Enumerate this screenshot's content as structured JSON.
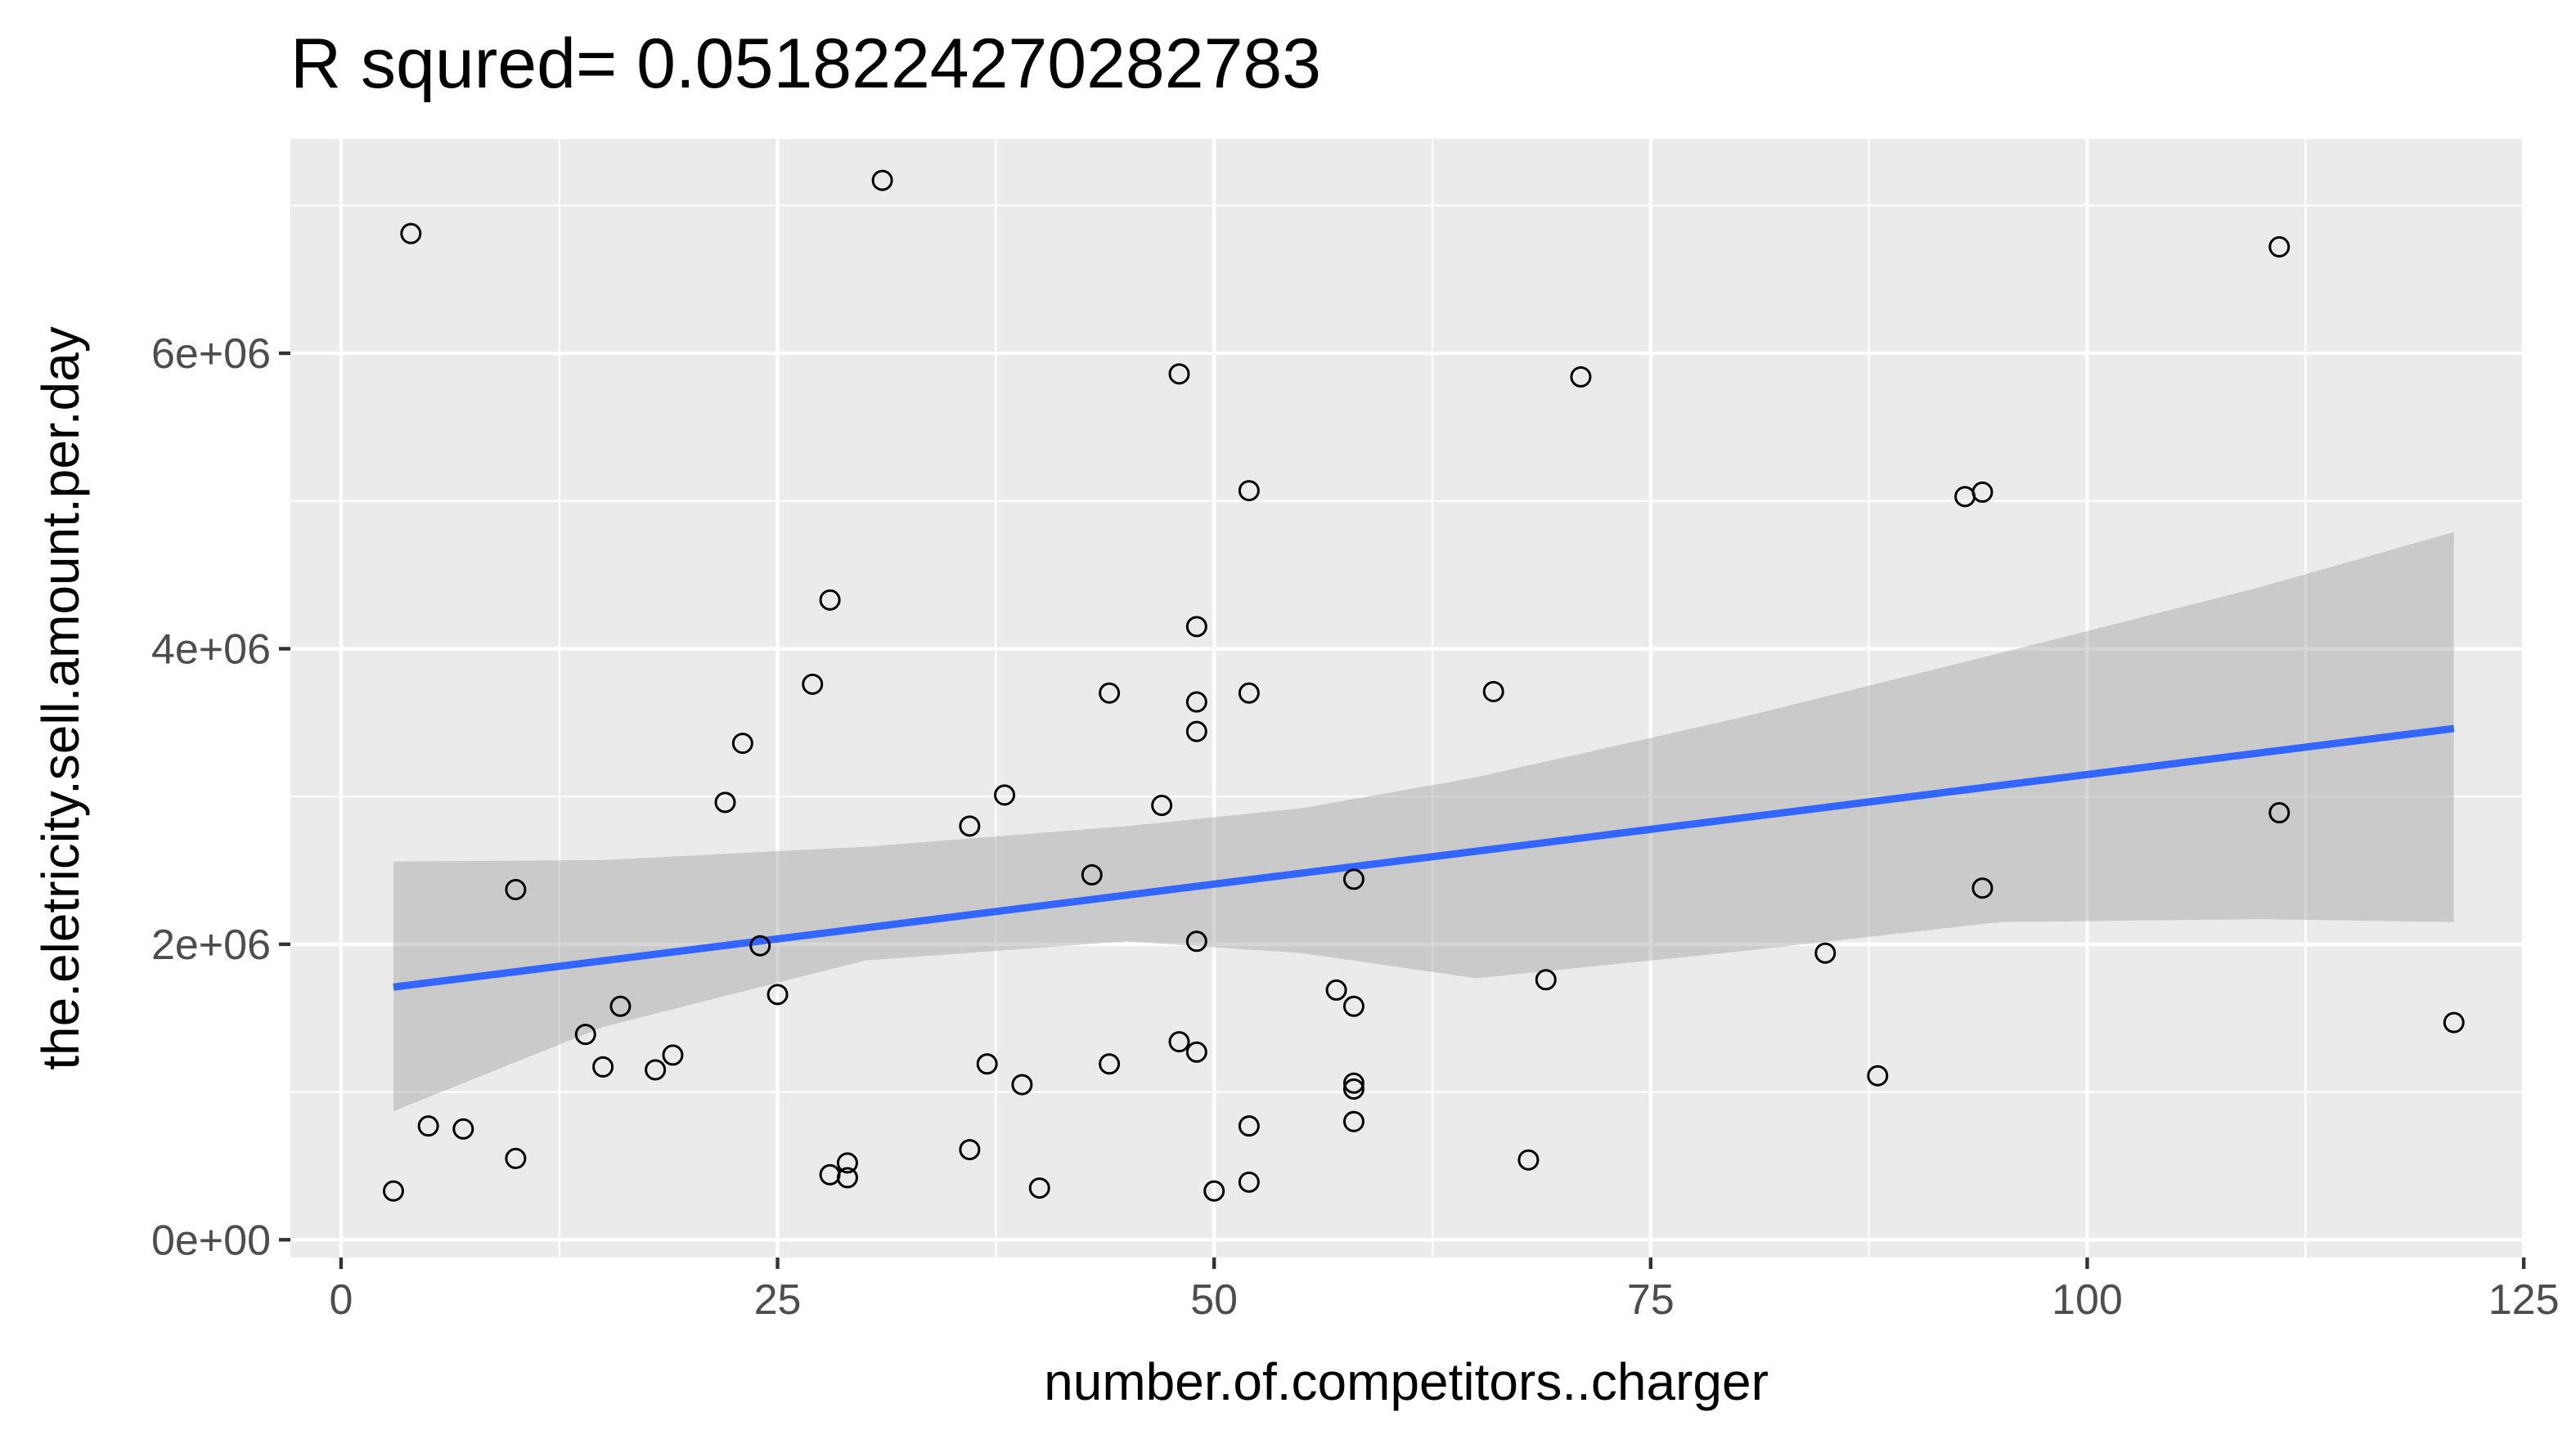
{
  "chart_data": {
    "type": "scatter",
    "title": "R squred= 0.0518224270282783",
    "xlabel": "number.of.competitors..charger",
    "ylabel": "the.eletricity.sell.amount.per.day",
    "xlim": [
      -2.9,
      124.9
    ],
    "ylim": [
      -120000,
      7450000
    ],
    "x_ticks": [
      0,
      25,
      50,
      75,
      100,
      125
    ],
    "x_tick_labels": [
      "0",
      "25",
      "50",
      "75",
      "100",
      "125"
    ],
    "x_minor_ticks": [
      12.5,
      37.5,
      62.5,
      87.5,
      112.5
    ],
    "y_ticks": [
      0,
      2000000,
      4000000,
      6000000
    ],
    "y_tick_labels": [
      "0e+00",
      "2e+06",
      "4e+06",
      "6e+06"
    ],
    "y_minor_ticks": [
      1000000,
      3000000,
      5000000,
      7000000
    ],
    "grid": true,
    "legend": "none",
    "points": {
      "x": [
        3,
        4,
        5,
        7,
        10,
        10,
        14,
        15,
        16,
        18,
        19,
        22,
        23,
        24,
        25,
        27,
        28,
        28,
        29,
        29,
        31,
        36,
        36,
        37,
        38,
        39,
        40,
        43,
        44,
        44,
        47,
        48,
        48,
        49,
        49,
        49,
        49,
        49,
        50,
        52,
        52,
        52,
        52,
        57,
        58,
        58,
        58,
        58,
        58,
        66,
        68,
        69,
        71,
        85,
        88,
        93,
        94,
        94,
        111,
        111,
        121
      ],
      "y": [
        330000,
        6810000,
        770000,
        750000,
        550000,
        2370000,
        1390000,
        1170000,
        1580000,
        1150000,
        1250000,
        2960000,
        3360000,
        1990000,
        1660000,
        3760000,
        4330000,
        440000,
        520000,
        420000,
        7170000,
        2800000,
        610000,
        1190000,
        3010000,
        1050000,
        350000,
        2470000,
        3700000,
        1190000,
        2940000,
        5860000,
        1340000,
        4150000,
        3640000,
        3440000,
        2020000,
        1270000,
        330000,
        5070000,
        3700000,
        770000,
        390000,
        1690000,
        2440000,
        1580000,
        1060000,
        1020000,
        800000,
        3710000,
        540000,
        1760000,
        5840000,
        1940000,
        1110000,
        5030000,
        5060000,
        2380000,
        6720000,
        2890000,
        1470000
      ]
    },
    "fit": {
      "method": "lm",
      "x": [
        3,
        121
      ],
      "y": [
        1710000,
        3460000
      ],
      "color": "#3366ff",
      "ribbon": {
        "x": [
          3,
          15,
          30,
          45,
          55,
          65,
          80,
          95,
          110,
          121
        ],
        "lower": [
          870000,
          1440000,
          1890000,
          2020000,
          1940000,
          1770000,
          1950000,
          2150000,
          2170000,
          2150000
        ],
        "upper": [
          2560000,
          2570000,
          2660000,
          2800000,
          2920000,
          3130000,
          3530000,
          3970000,
          4420000,
          4790000
        ],
        "color": "#999999"
      }
    },
    "colors": {
      "panel_background": "#ebebeb",
      "grid_major": "#ffffff",
      "point_stroke": "#000000"
    }
  }
}
